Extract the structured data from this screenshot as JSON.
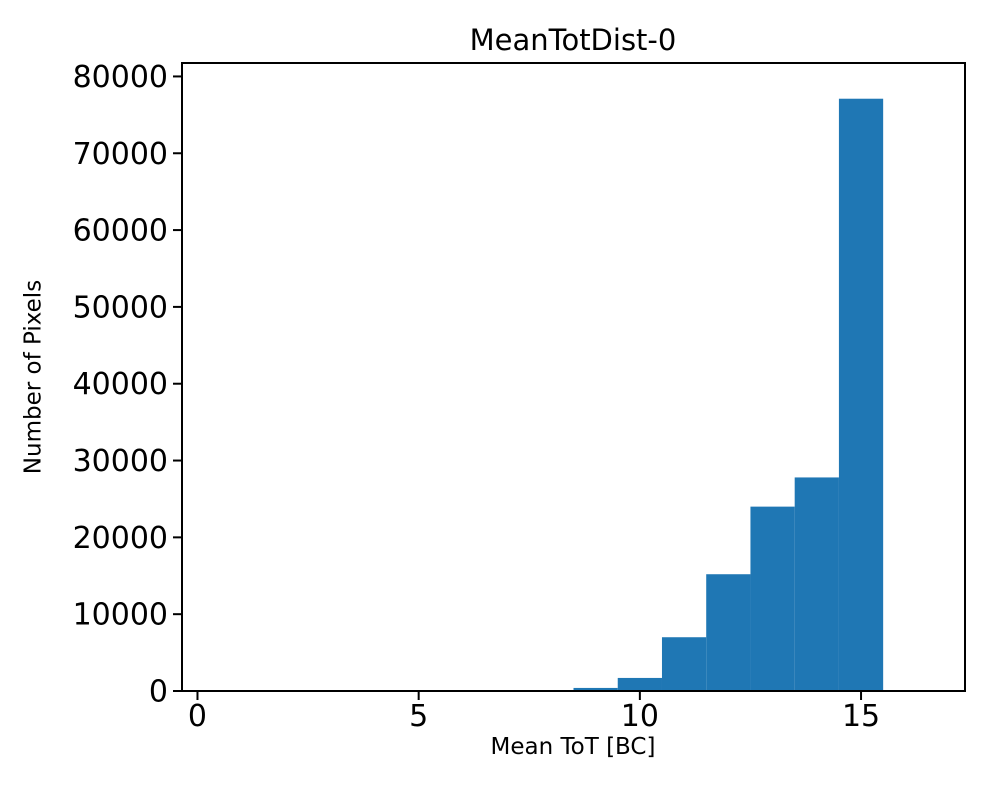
{
  "chart_data": {
    "type": "bar",
    "subtype": "histogram",
    "title": "MeanTotDist-0",
    "xlabel": "Mean ToT [BC]",
    "ylabel": "Number of Pixels",
    "bin_edges": [
      8.5,
      9.5,
      10.5,
      11.5,
      12.5,
      13.5,
      14.5,
      15.5
    ],
    "counts": [
      400,
      1700,
      7000,
      15200,
      24000,
      27800,
      77100
    ],
    "xticks": [
      0,
      5,
      10,
      15
    ],
    "yticks": [
      0,
      10000,
      20000,
      30000,
      40000,
      50000,
      60000,
      70000,
      80000
    ],
    "xlim": [
      -0.35,
      17.35
    ],
    "ylim": [
      0,
      81750
    ],
    "bar_color": "#1f77b4",
    "axis_color": "#000000",
    "background": "#ffffff",
    "grid": false,
    "legend_position": "none"
  }
}
